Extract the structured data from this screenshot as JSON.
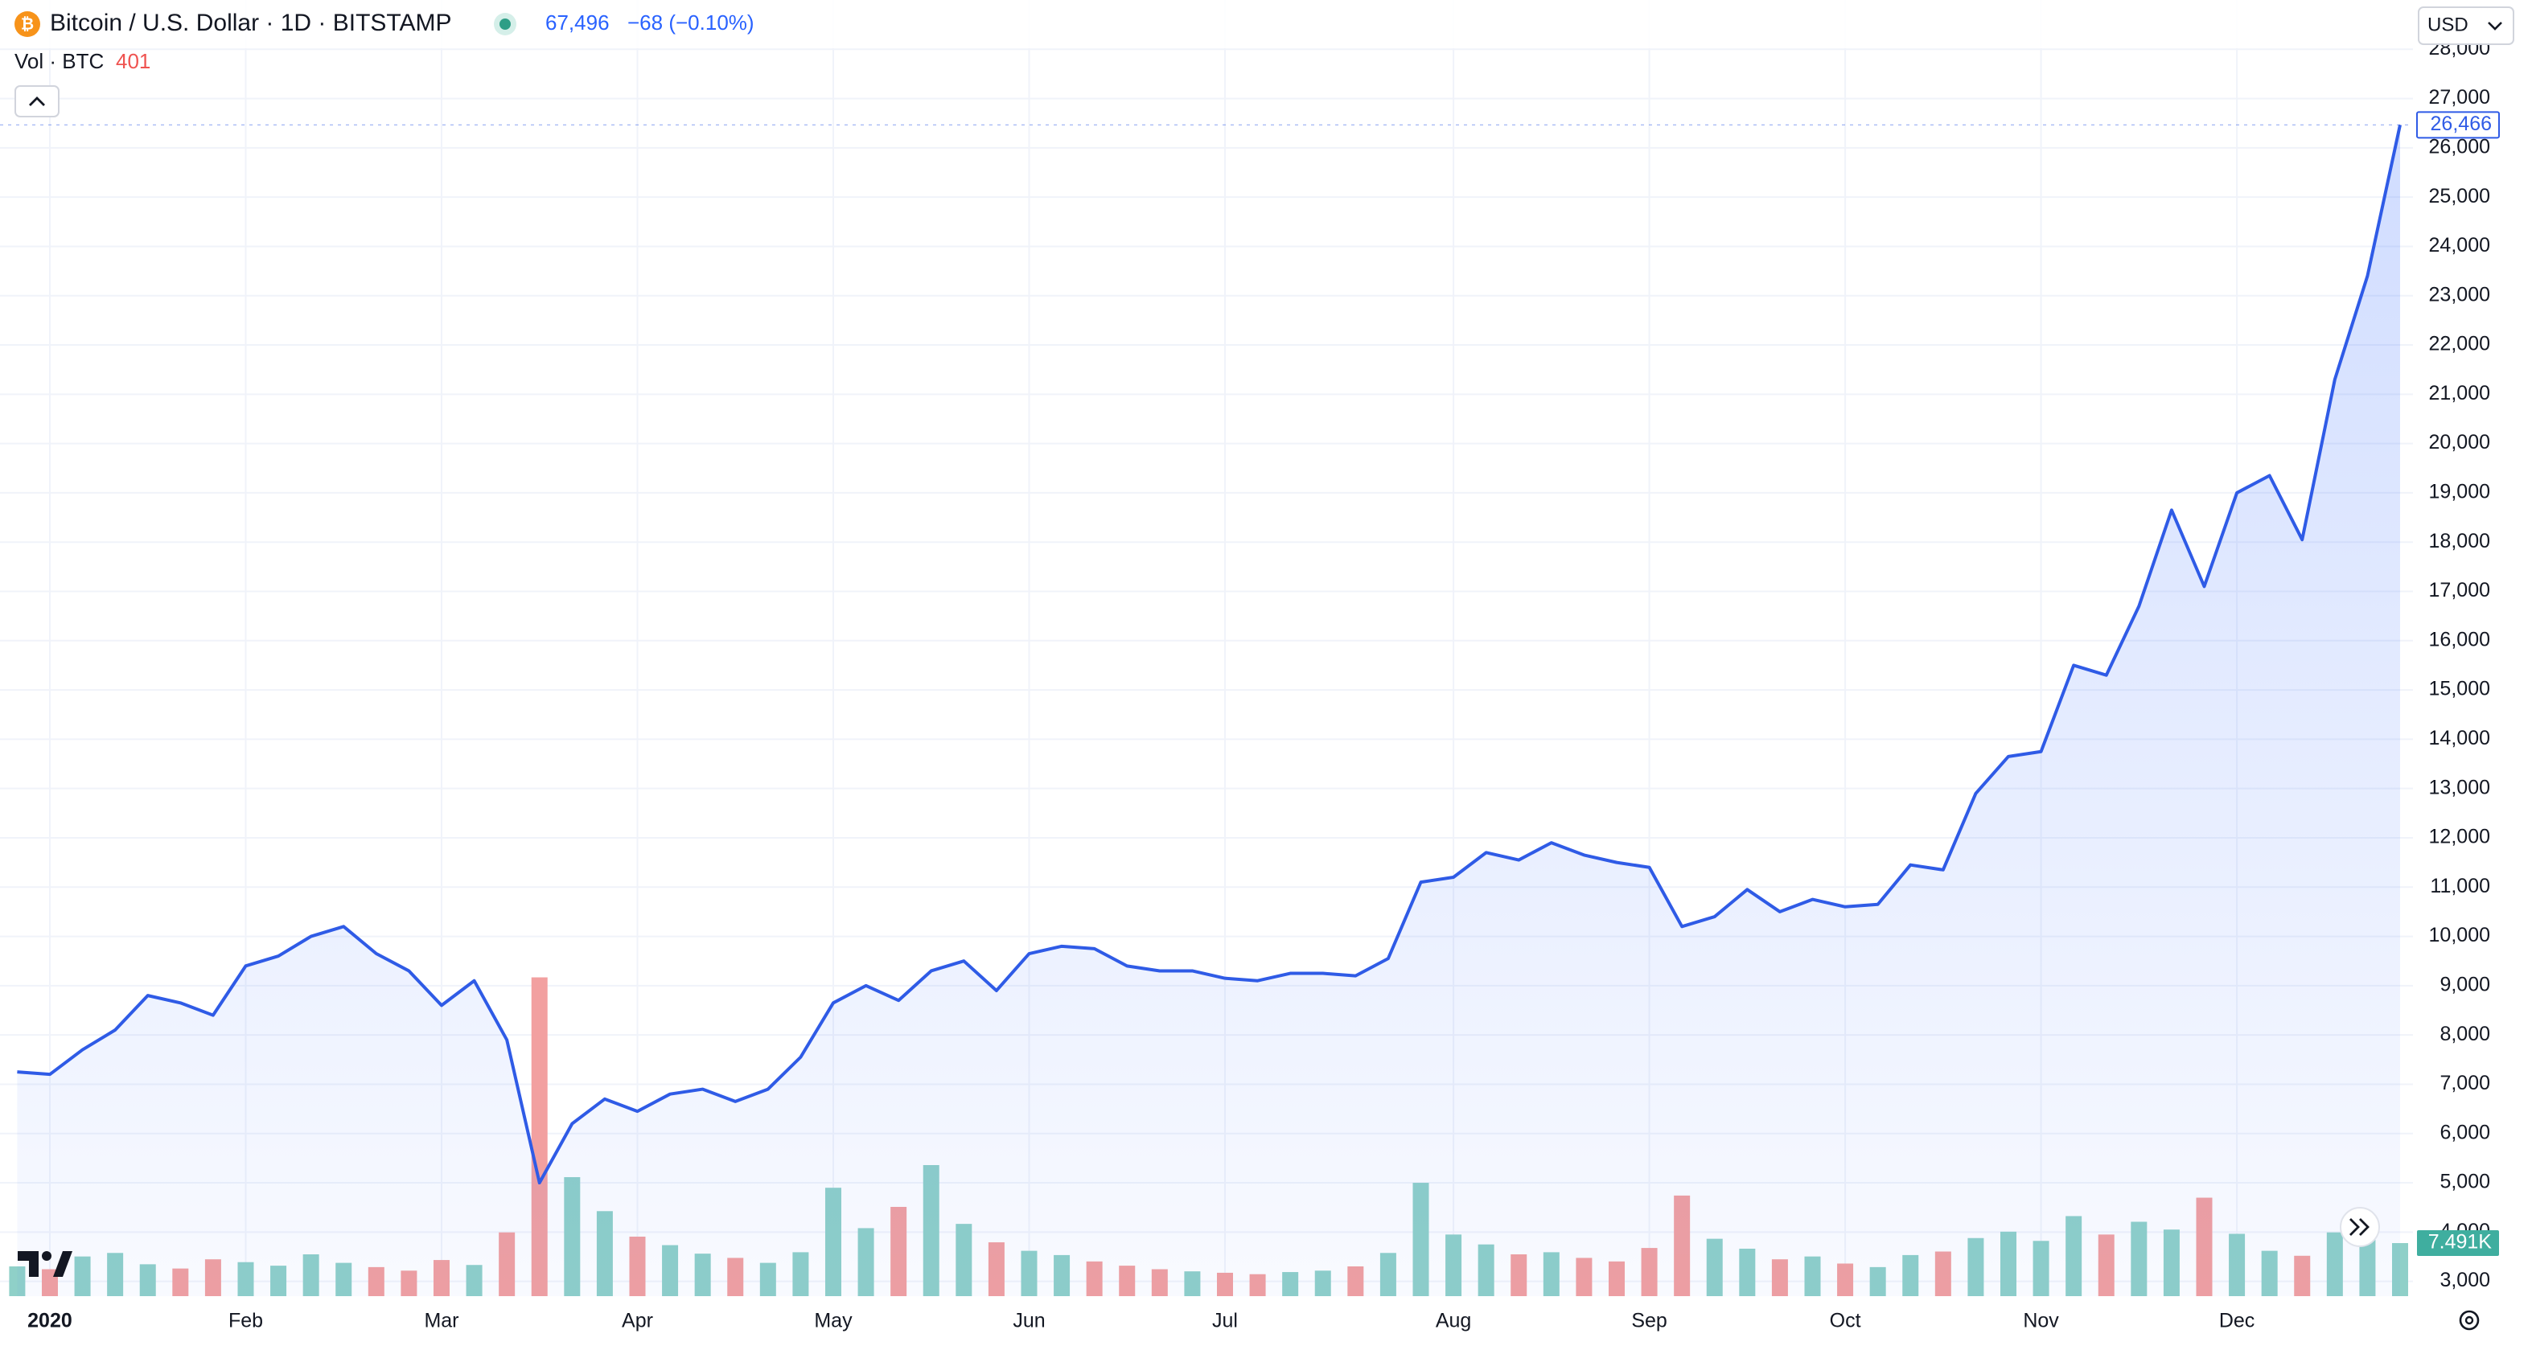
{
  "chart_data": {
    "type": "area",
    "header": {
      "symbol": "Bitcoin / U.S. Dollar · 1D · BITSTAMP",
      "price": "67,496",
      "change": "−68 (−0.10%)",
      "volume_name": "Vol · BTC",
      "volume_value": "401",
      "currency": "USD"
    },
    "categories": [
      null,
      "2020",
      null,
      null,
      null,
      null,
      null,
      "Feb",
      null,
      null,
      null,
      null,
      null,
      "Mar",
      null,
      null,
      null,
      null,
      null,
      "Apr",
      null,
      null,
      null,
      null,
      null,
      "May",
      null,
      null,
      null,
      null,
      null,
      "Jun",
      null,
      null,
      null,
      null,
      null,
      "Jul",
      null,
      null,
      null,
      null,
      null,
      null,
      "Aug",
      null,
      null,
      null,
      null,
      null,
      "Sep",
      null,
      null,
      null,
      null,
      null,
      "Oct",
      null,
      null,
      null,
      null,
      null,
      "Nov",
      null,
      null,
      null,
      null,
      null,
      "Dec",
      null,
      null,
      null,
      null,
      null
    ],
    "series": [
      {
        "name": "Bitcoin / U.S. Dollar",
        "color": "#2f5be6",
        "values": [
          7250,
          7200,
          7700,
          8100,
          8800,
          8650,
          8400,
          9400,
          9600,
          10000,
          10200,
          9650,
          9300,
          8600,
          9100,
          7900,
          5000,
          6200,
          6700,
          6450,
          6800,
          6900,
          6650,
          6900,
          7550,
          8650,
          9000,
          8700,
          9300,
          9500,
          8900,
          9650,
          9800,
          9750,
          9400,
          9300,
          9300,
          9150,
          9100,
          9250,
          9250,
          9200,
          9550,
          11100,
          11200,
          11700,
          11550,
          11900,
          11650,
          11500,
          11400,
          10200,
          10400,
          10950,
          10500,
          10750,
          10600,
          10650,
          11450,
          11350,
          12900,
          13650,
          13750,
          15500,
          15300,
          16700,
          18650,
          17100,
          19000,
          19350,
          18050,
          21300,
          23400,
          26466
        ],
        "last_label": {
          "value": 26466,
          "label": "26,466"
        }
      }
    ],
    "volume": {
      "values": [
        4200,
        3800,
        5600,
        6100,
        4500,
        3900,
        5200,
        4800,
        4300,
        5900,
        4700,
        4100,
        3600,
        5100,
        4400,
        9000,
        45000,
        16800,
        12000,
        8400,
        7200,
        6000,
        5400,
        4700,
        6200,
        15300,
        9600,
        12600,
        18500,
        10200,
        7600,
        6400,
        5800,
        4900,
        4300,
        3800,
        3500,
        3300,
        3100,
        3400,
        3600,
        4200,
        6100,
        16000,
        8700,
        7300,
        5900,
        6200,
        5400,
        4900,
        6800,
        14200,
        8100,
        6700,
        5200,
        5600,
        4600,
        4100,
        5800,
        6300,
        8200,
        9100,
        7800,
        11300,
        8700,
        10500,
        9400,
        13900,
        8800,
        6400,
        5700,
        9000,
        10600,
        7491
      ],
      "up_color": "#8fd0c8",
      "down_color": "#f2a0a0",
      "last_label": {
        "value": 7491,
        "label": "7.491K"
      }
    },
    "ylim": [
      2700,
      29000
    ],
    "yticks": [
      {
        "value": 3000,
        "label": "3,000"
      },
      {
        "value": 4000,
        "label": "4,000"
      },
      {
        "value": 5000,
        "label": "5,000"
      },
      {
        "value": 6000,
        "label": "6,000"
      },
      {
        "value": 7000,
        "label": "7,000"
      },
      {
        "value": 8000,
        "label": "8,000"
      },
      {
        "value": 9000,
        "label": "9,000"
      },
      {
        "value": 10000,
        "label": "10,000"
      },
      {
        "value": 11000,
        "label": "11,000"
      },
      {
        "value": 12000,
        "label": "12,000"
      },
      {
        "value": 13000,
        "label": "13,000"
      },
      {
        "value": 14000,
        "label": "14,000"
      },
      {
        "value": 15000,
        "label": "15,000"
      },
      {
        "value": 16000,
        "label": "16,000"
      },
      {
        "value": 17000,
        "label": "17,000"
      },
      {
        "value": 18000,
        "label": "18,000"
      },
      {
        "value": 19000,
        "label": "19,000"
      },
      {
        "value": 20000,
        "label": "20,000"
      },
      {
        "value": 21000,
        "label": "21,000"
      },
      {
        "value": 22000,
        "label": "22,000"
      },
      {
        "value": 23000,
        "label": "23,000"
      },
      {
        "value": 24000,
        "label": "24,000"
      },
      {
        "value": 25000,
        "label": "25,000"
      },
      {
        "value": 26000,
        "label": "26,000"
      },
      {
        "value": 27000,
        "label": "27,000"
      },
      {
        "value": 28000,
        "label": "28,000"
      }
    ],
    "grid": true
  }
}
